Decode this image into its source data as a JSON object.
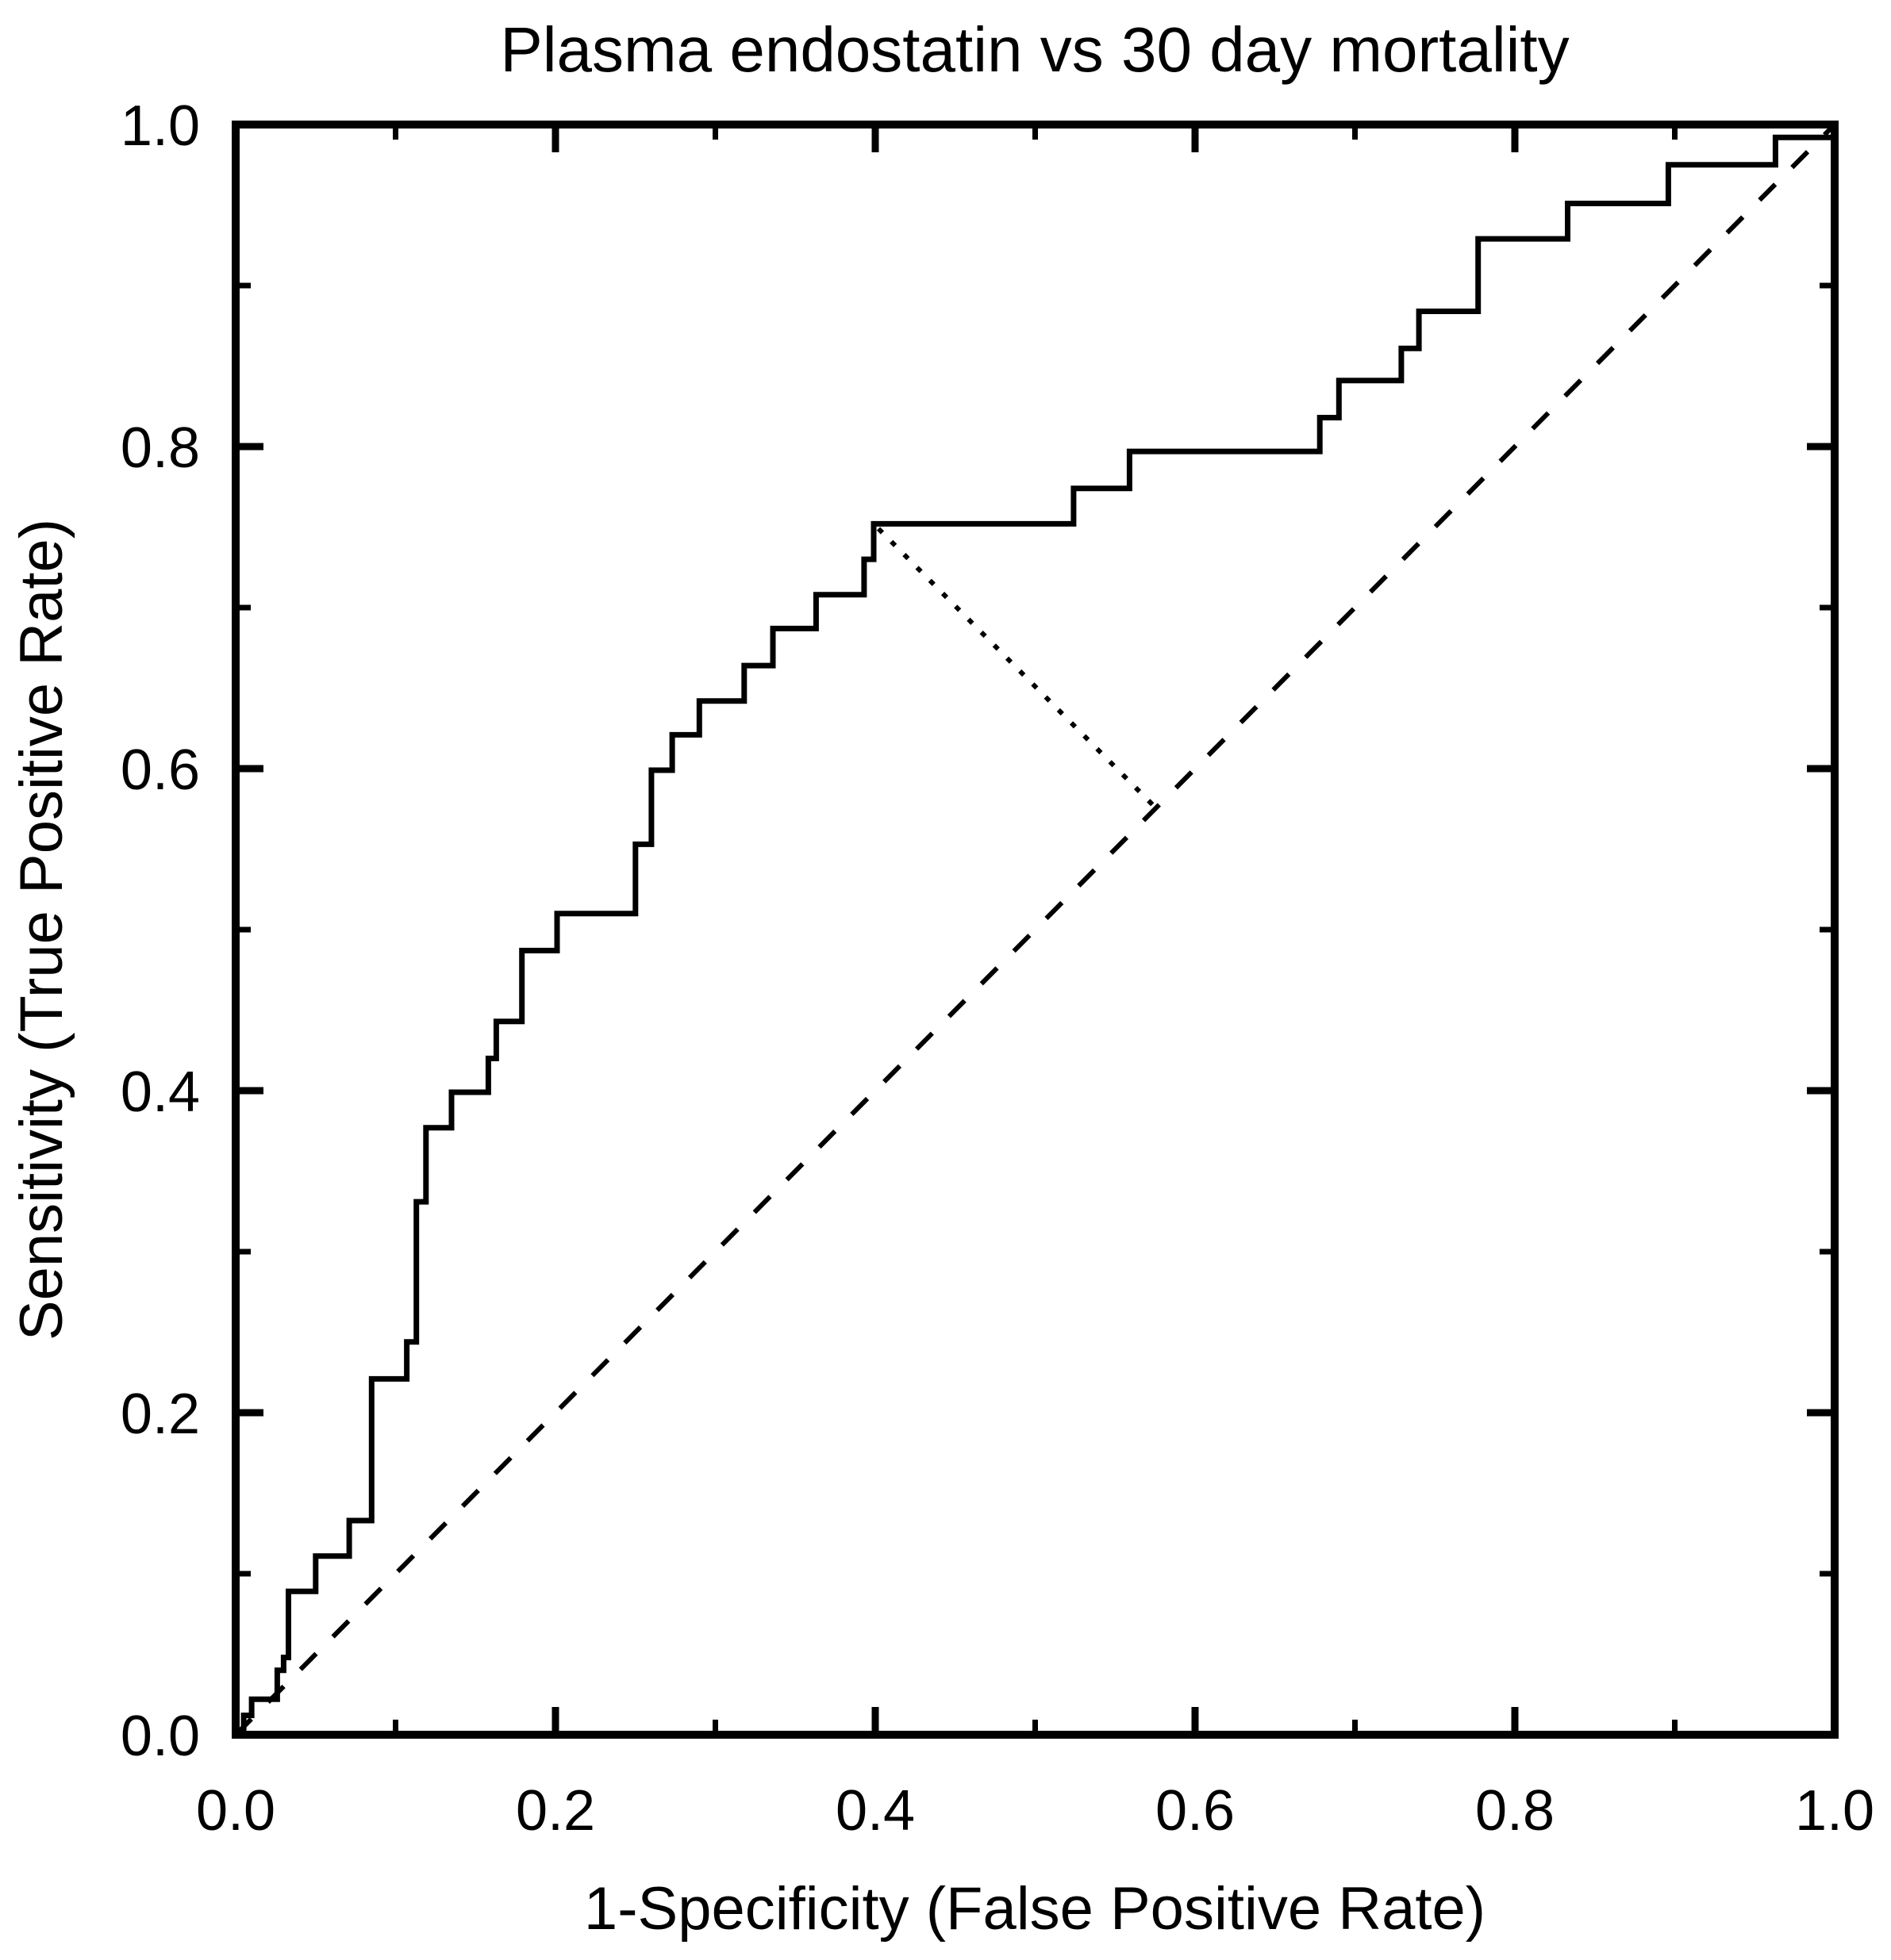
{
  "figure": {
    "background_color": "#ffffff",
    "line_color": "#000000"
  },
  "chart_data": {
    "type": "line",
    "subtype": "roc_step_curve",
    "title": "Plasma endostatin vs 30 day mortality",
    "xlabel": "1-Specificity (False Positive Rate)",
    "ylabel": "Sensitivity (True Positive Rate)",
    "xlim": [
      0,
      1
    ],
    "ylim": [
      0,
      1
    ],
    "grid": false,
    "legend_position": "none",
    "x_major_ticks": [
      0.0,
      0.2,
      0.4,
      0.6,
      0.8,
      1.0
    ],
    "y_major_ticks": [
      0.0,
      0.2,
      0.4,
      0.6,
      0.8,
      1.0
    ],
    "x_tick_labels": [
      "0.0",
      "0.2",
      "0.4",
      "0.6",
      "0.8",
      "1.0"
    ],
    "y_tick_labels": [
      "0.0",
      "0.2",
      "0.4",
      "0.6",
      "0.8",
      "1.0"
    ],
    "minor_tick_step": 0.1,
    "series": [
      {
        "name": "ROC curve",
        "style": "solid",
        "color": "#000000",
        "points": [
          [
            0.0,
            0.0
          ],
          [
            0.005,
            0.0
          ],
          [
            0.005,
            0.012
          ],
          [
            0.01,
            0.012
          ],
          [
            0.01,
            0.022
          ],
          [
            0.026,
            0.022
          ],
          [
            0.026,
            0.04
          ],
          [
            0.03,
            0.04
          ],
          [
            0.03,
            0.048
          ],
          [
            0.033,
            0.048
          ],
          [
            0.033,
            0.089
          ],
          [
            0.05,
            0.089
          ],
          [
            0.05,
            0.111
          ],
          [
            0.071,
            0.111
          ],
          [
            0.071,
            0.133
          ],
          [
            0.085,
            0.133
          ],
          [
            0.085,
            0.221
          ],
          [
            0.107,
            0.221
          ],
          [
            0.107,
            0.244
          ],
          [
            0.113,
            0.244
          ],
          [
            0.113,
            0.331
          ],
          [
            0.119,
            0.331
          ],
          [
            0.119,
            0.377
          ],
          [
            0.135,
            0.377
          ],
          [
            0.135,
            0.399
          ],
          [
            0.158,
            0.399
          ],
          [
            0.158,
            0.42
          ],
          [
            0.163,
            0.42
          ],
          [
            0.163,
            0.443
          ],
          [
            0.179,
            0.443
          ],
          [
            0.179,
            0.487
          ],
          [
            0.201,
            0.487
          ],
          [
            0.201,
            0.51
          ],
          [
            0.25,
            0.51
          ],
          [
            0.25,
            0.553
          ],
          [
            0.26,
            0.553
          ],
          [
            0.26,
            0.599
          ],
          [
            0.273,
            0.599
          ],
          [
            0.273,
            0.621
          ],
          [
            0.29,
            0.621
          ],
          [
            0.29,
            0.642
          ],
          [
            0.318,
            0.642
          ],
          [
            0.318,
            0.664
          ],
          [
            0.336,
            0.664
          ],
          [
            0.336,
            0.687
          ],
          [
            0.363,
            0.687
          ],
          [
            0.363,
            0.708
          ],
          [
            0.393,
            0.708
          ],
          [
            0.393,
            0.73
          ],
          [
            0.399,
            0.73
          ],
          [
            0.399,
            0.752
          ],
          [
            0.524,
            0.752
          ],
          [
            0.524,
            0.774
          ],
          [
            0.559,
            0.774
          ],
          [
            0.559,
            0.797
          ],
          [
            0.678,
            0.797
          ],
          [
            0.678,
            0.818
          ],
          [
            0.69,
            0.818
          ],
          [
            0.69,
            0.841
          ],
          [
            0.729,
            0.841
          ],
          [
            0.729,
            0.861
          ],
          [
            0.74,
            0.861
          ],
          [
            0.74,
            0.884
          ],
          [
            0.777,
            0.884
          ],
          [
            0.777,
            0.929
          ],
          [
            0.833,
            0.929
          ],
          [
            0.833,
            0.951
          ],
          [
            0.896,
            0.951
          ],
          [
            0.896,
            0.975
          ],
          [
            0.963,
            0.975
          ],
          [
            0.963,
            0.992
          ],
          [
            1.0,
            0.992
          ],
          [
            1.0,
            1.0
          ]
        ]
      },
      {
        "name": "Chance diagonal (reference line)",
        "style": "dashed",
        "color": "#000000",
        "points": [
          [
            0.0,
            0.0
          ],
          [
            1.0,
            1.0
          ]
        ]
      },
      {
        "name": "Optimal cutoff indicator",
        "style": "dotted",
        "color": "#000000",
        "points": [
          [
            0.402,
            0.749
          ],
          [
            0.578,
            0.573
          ]
        ]
      }
    ]
  }
}
